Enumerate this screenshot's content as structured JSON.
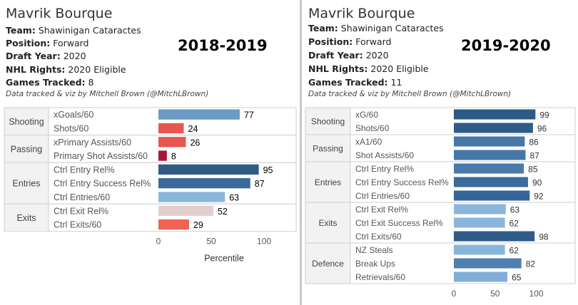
{
  "chart_data": [
    {
      "type": "bar",
      "player": "Mavrik Bourque",
      "info": [
        {
          "label": "Team:",
          "value": "Shawinigan Cataractes"
        },
        {
          "label": "Position:",
          "value": "Forward"
        },
        {
          "label": "Draft Year:",
          "value": "2020"
        },
        {
          "label": "NHL Rights:",
          "value": "2020 Eligible"
        },
        {
          "label": "Games Tracked:",
          "value": "8"
        }
      ],
      "credit": "Data tracked & viz by Mitchell Brown (@MitchLBrown)",
      "title": "2018-2019",
      "xlabel": "Percentile",
      "xlim": [
        0,
        120
      ],
      "xticks": [
        "0",
        "50",
        "100"
      ],
      "xtick_values": [
        0,
        50,
        100
      ],
      "groups": [
        {
          "name": "Shooting",
          "rows": [
            {
              "label": "xGoals/60",
              "value": 77,
              "color": "#6b9ac4"
            },
            {
              "label": "Shots/60",
              "value": 24,
              "color": "#e8574f"
            }
          ]
        },
        {
          "name": "Passing",
          "rows": [
            {
              "label": "xPrimary Assists/60",
              "value": 26,
              "color": "#e8574f"
            },
            {
              "label": "Primary Shot Assists/60",
              "value": 8,
              "color": "#a3173c"
            }
          ]
        },
        {
          "name": "Entries",
          "rows": [
            {
              "label": "Ctrl Entry Rel%",
              "value": 95,
              "color": "#2f5b85"
            },
            {
              "label": "Ctrl Entry Success Rel%",
              "value": 87,
              "color": "#3a6a99"
            },
            {
              "label": "Ctrl Entries/60",
              "value": 63,
              "color": "#8ab6dc"
            }
          ]
        },
        {
          "name": "Exits",
          "rows": [
            {
              "label": "Ctrl Exit Rel%",
              "value": 52,
              "color": "#e1cfcf"
            },
            {
              "label": "Ctrl Exits/60",
              "value": 29,
              "color": "#ee6351"
            }
          ]
        }
      ]
    },
    {
      "type": "bar",
      "player": "Mavrik Bourque",
      "info": [
        {
          "label": "Team:",
          "value": "Shawinigan Cataractes"
        },
        {
          "label": "Position:",
          "value": "Forward"
        },
        {
          "label": "Draft Year:",
          "value": "2020"
        },
        {
          "label": "NHL Rights:",
          "value": "2020 Eligible"
        },
        {
          "label": "Games Tracked:",
          "value": "11"
        }
      ],
      "credit": "Data tracked & viz by Mitchell Brown (@MitchLBrown)",
      "title": "2019-2020",
      "xlabel": "",
      "xlim": [
        0,
        120
      ],
      "xticks": [
        "0",
        "50",
        "100"
      ],
      "xtick_values": [
        0,
        50,
        100
      ],
      "groups": [
        {
          "name": "Shooting",
          "rows": [
            {
              "label": "xG/60",
              "value": 99,
              "color": "#2c5985"
            },
            {
              "label": "Shots/60",
              "value": 96,
              "color": "#2f5b88"
            }
          ]
        },
        {
          "name": "Passing",
          "rows": [
            {
              "label": "xA1/60",
              "value": 86,
              "color": "#4677a8"
            },
            {
              "label": "Shot Assists/60",
              "value": 87,
              "color": "#4677a8"
            }
          ]
        },
        {
          "name": "Entries",
          "rows": [
            {
              "label": "Ctrl Entry Rel%",
              "value": 85,
              "color": "#4a7aab"
            },
            {
              "label": "Ctrl Entry Success Rel%",
              "value": 90,
              "color": "#3b6b9c"
            },
            {
              "label": "Ctrl Entries/60",
              "value": 92,
              "color": "#36659a"
            }
          ]
        },
        {
          "name": "Exits",
          "rows": [
            {
              "label": "Ctrl Exit Rel%",
              "value": 63,
              "color": "#8ab6dc"
            },
            {
              "label": "Ctrl Exit Success Rel%",
              "value": 62,
              "color": "#8ab6dc"
            },
            {
              "label": "Ctrl Exits/60",
              "value": 98,
              "color": "#2e5b88"
            }
          ]
        },
        {
          "name": "Defence",
          "rows": [
            {
              "label": "NZ Steals",
              "value": 62,
              "color": "#8ab6dc"
            },
            {
              "label": "Break Ups",
              "value": 82,
              "color": "#4f7fb0"
            },
            {
              "label": "Retrievals/60",
              "value": 65,
              "color": "#80aed8"
            }
          ]
        }
      ]
    }
  ]
}
